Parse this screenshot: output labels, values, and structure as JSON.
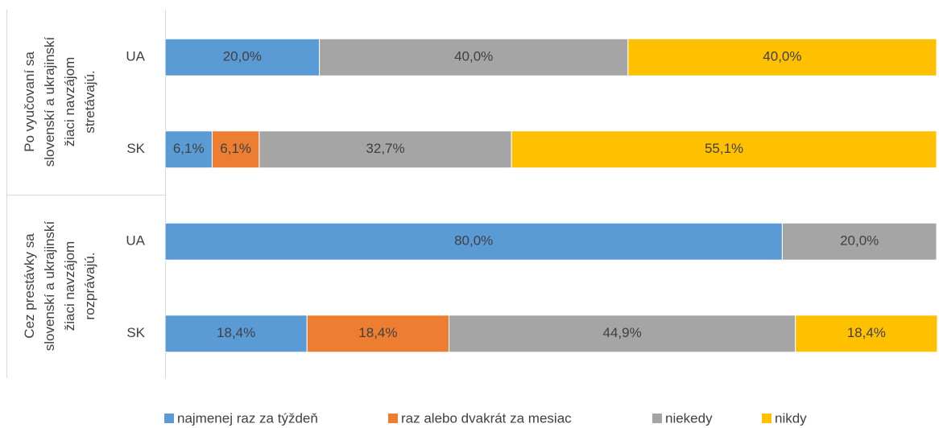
{
  "chart_data": {
    "type": "stacked_barh",
    "categories": [
      "UA",
      "SK",
      "UA",
      "SK"
    ],
    "groups": [
      [
        "Po vyučovaní sa",
        "slovenskí a ukrajinskí",
        "žiaci navzájom",
        "stretávajú."
      ],
      [
        "Cez prestávky sa",
        "slovenskí a ukrajinskí",
        "žiaci navzájom",
        "rozprávajú."
      ]
    ],
    "xlim": [
      0,
      100
    ],
    "series": [
      {
        "name": "najmenej raz za týždeň",
        "color": "#5b9bd5",
        "values": [
          20.0,
          6.1,
          80.0,
          18.4
        ],
        "value_labels": [
          "20,0%",
          "6,1%",
          "80,0%",
          "18,4%"
        ]
      },
      {
        "name": "raz alebo dvakrát  za mesiac",
        "color": "#ed7d31",
        "values": [
          null,
          6.1,
          null,
          18.4
        ],
        "value_labels": [
          null,
          "6,1%",
          null,
          "18,4%"
        ]
      },
      {
        "name": "niekedy",
        "color": "#a5a5a5",
        "values": [
          40.0,
          32.7,
          20.0,
          44.9
        ],
        "value_labels": [
          "40,0%",
          "32,7%",
          "20,0%",
          "44,9%"
        ]
      },
      {
        "name": "nikdy",
        "color": "#ffc000",
        "values": [
          40.0,
          55.1,
          null,
          18.4
        ],
        "value_labels": [
          "40,0%",
          "55,1%",
          null,
          "18,4%"
        ]
      }
    ],
    "legend": "bottom"
  }
}
